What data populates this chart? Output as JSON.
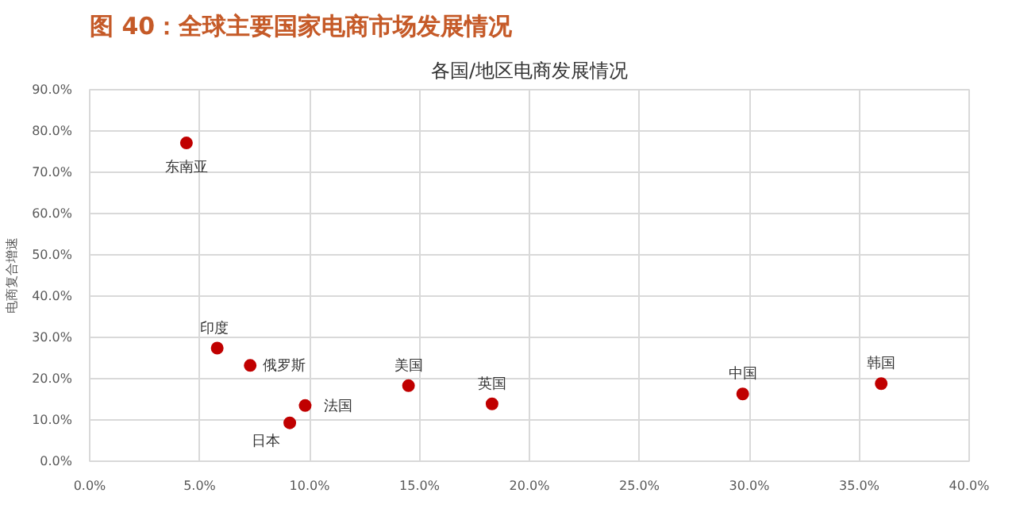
{
  "chart_data": {
    "type": "scatter",
    "title": "图 40：全球主要国家电商市场发展情况",
    "subtitle": "各国/地区电商发展情况",
    "ylabel": "电商复合增速",
    "x": [
      4.4,
      5.8,
      7.3,
      9.1,
      9.8,
      14.5,
      18.3,
      29.7,
      36.0
    ],
    "series": [
      {
        "color": "#c00000",
        "values": [
          77.1,
          27.4,
          23.2,
          9.3,
          13.5,
          18.3,
          13.9,
          16.3,
          18.8
        ]
      }
    ],
    "annotations": [
      {
        "text": "东南亚",
        "x": 4.4,
        "y": 77.1
      },
      {
        "text": "印度",
        "x": 5.8,
        "y": 27.4
      },
      {
        "text": "俄罗斯",
        "x": 7.3,
        "y": 23.2
      },
      {
        "text": "日本",
        "x": 9.1,
        "y": 9.3
      },
      {
        "text": "法国",
        "x": 9.8,
        "y": 13.5
      },
      {
        "text": "美国",
        "x": 14.5,
        "y": 18.3
      },
      {
        "text": "英国",
        "x": 18.3,
        "y": 13.9
      },
      {
        "text": "中国",
        "x": 29.7,
        "y": 16.3
      },
      {
        "text": "韩国",
        "x": 36.0,
        "y": 18.8
      }
    ],
    "xlim": [
      0,
      40
    ],
    "ylim": [
      0,
      90
    ],
    "xticks": [
      {
        "value": 0,
        "label": "0.0%"
      },
      {
        "value": 5,
        "label": "5.0%"
      },
      {
        "value": 10,
        "label": "10.0%"
      },
      {
        "value": 15,
        "label": "15.0%"
      },
      {
        "value": 20,
        "label": "20.0%"
      },
      {
        "value": 25,
        "label": "25.0%"
      },
      {
        "value": 30,
        "label": "30.0%"
      },
      {
        "value": 35,
        "label": "35.0%"
      },
      {
        "value": 40,
        "label": "40.0%"
      }
    ],
    "yticks": [
      {
        "value": 0,
        "label": "0.0%"
      },
      {
        "value": 10,
        "label": "10.0%"
      },
      {
        "value": 20,
        "label": "20.0%"
      },
      {
        "value": 30,
        "label": "30.0%"
      },
      {
        "value": 40,
        "label": "40.0%"
      },
      {
        "value": 50,
        "label": "50.0%"
      },
      {
        "value": 60,
        "label": "60.0%"
      },
      {
        "value": 70,
        "label": "70.0%"
      },
      {
        "value": 80,
        "label": "80.0%"
      },
      {
        "value": 90,
        "label": "90.0%"
      }
    ],
    "grid": true,
    "marker": "circle"
  }
}
